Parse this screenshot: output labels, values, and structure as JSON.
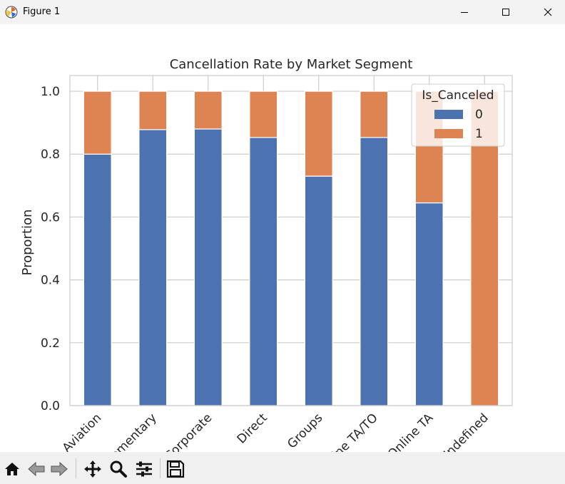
{
  "window": {
    "title": "Figure 1",
    "app_icon": "matplotlib-icon",
    "controls": [
      "minimize-icon",
      "maximize-icon",
      "close-icon"
    ]
  },
  "toolbar": {
    "icons": [
      "home-icon",
      "back-arrow-icon",
      "forward-arrow-icon",
      "pan-icon",
      "zoom-icon",
      "configure-subplots-icon",
      "save-icon"
    ]
  },
  "colors": {
    "series0": "#4c72b0",
    "series1": "#dd8452",
    "grid": "#cccccc"
  },
  "chart_data": {
    "type": "bar",
    "stacked": true,
    "title": "Cancellation Rate by Market Segment",
    "xlabel": "",
    "ylabel": "Proportion",
    "ylim": [
      0,
      1.05
    ],
    "yticks": [
      "0.0",
      "0.2",
      "0.4",
      "0.6",
      "0.8",
      "1.0"
    ],
    "grid": true,
    "categories": [
      "Aviation",
      "Complementary",
      "Corporate",
      "Direct",
      "Groups",
      "Offline TA/TO",
      "Online TA",
      "Undefined"
    ],
    "series": [
      {
        "name": "0",
        "values": [
          0.8,
          0.878,
          0.88,
          0.853,
          0.73,
          0.853,
          0.645,
          0.0
        ]
      },
      {
        "name": "1",
        "values": [
          0.2,
          0.122,
          0.12,
          0.147,
          0.27,
          0.147,
          0.355,
          1.0
        ]
      }
    ],
    "legend": {
      "title": "Is_Canceled",
      "placement": "top-right"
    }
  }
}
